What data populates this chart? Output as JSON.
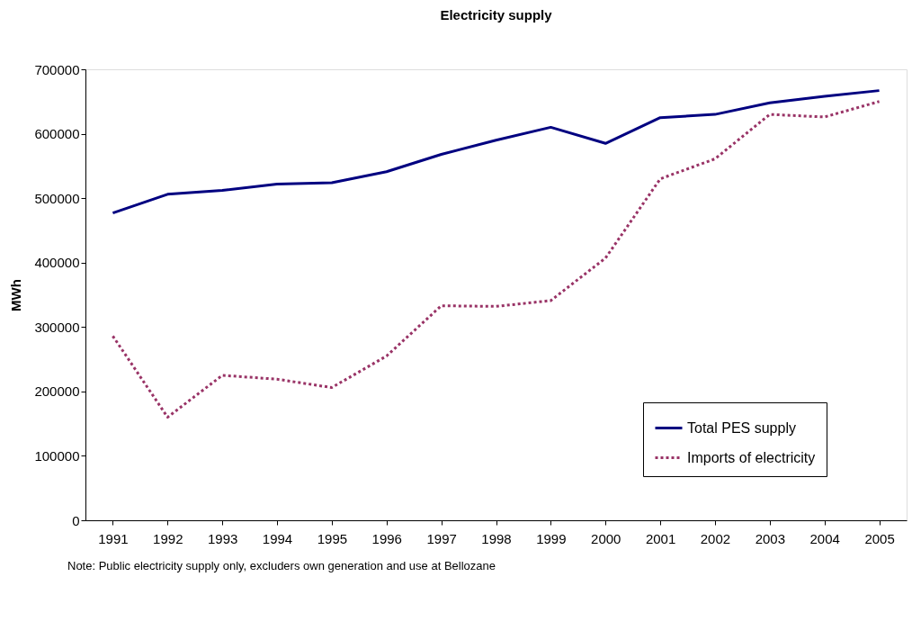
{
  "chart_data": {
    "type": "line",
    "title": "Electricity supply",
    "ylabel": "MWh",
    "categories": [
      "1991",
      "1992",
      "1993",
      "1994",
      "1995",
      "1996",
      "1997",
      "1998",
      "1999",
      "2000",
      "2001",
      "2002",
      "2003",
      "2004",
      "2005"
    ],
    "series": [
      {
        "name": "Total PES supply",
        "color": "#000080",
        "line_style": "solid",
        "values": [
          477000,
          506000,
          512000,
          522000,
          524000,
          541000,
          568000,
          590000,
          610000,
          585000,
          625000,
          630000,
          648000,
          658000,
          667000
        ]
      },
      {
        "name": "Imports of electricity",
        "color": "#993366",
        "line_style": "dotted",
        "values": [
          286000,
          160000,
          225000,
          219000,
          206000,
          255000,
          333000,
          332000,
          341000,
          407000,
          530000,
          561000,
          630000,
          626000,
          650000
        ]
      }
    ],
    "ylim": [
      0,
      700000
    ],
    "yticks": [
      0,
      100000,
      200000,
      300000,
      400000,
      500000,
      600000,
      700000
    ],
    "grid": false,
    "legend": "bottom right",
    "marker": "none",
    "annotations": [
      "Note: Public electricity supply only, excluders own generation and use at Bellozane"
    ]
  }
}
